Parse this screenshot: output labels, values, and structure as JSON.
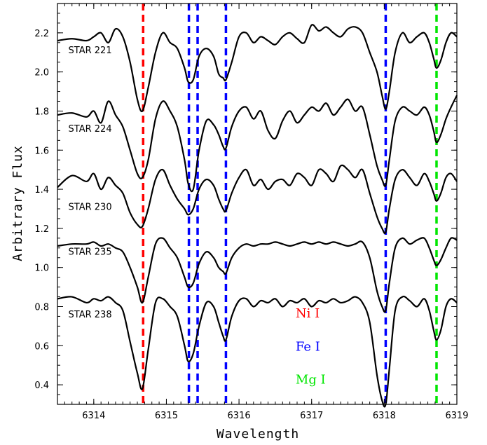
{
  "chart_data": {
    "type": "line",
    "title": "",
    "xlabel": "Wavelength",
    "ylabel": "Arbitrary Flux",
    "xlim": [
      6313.5,
      6319.0
    ],
    "ylim": [
      0.3,
      2.35
    ],
    "x_ticks": [
      6314,
      6315,
      6316,
      6317,
      6318,
      6319
    ],
    "y_ticks": [
      0.4,
      0.6,
      0.8,
      1.0,
      1.2,
      1.4,
      1.6,
      1.8,
      2.0,
      2.2
    ],
    "y_tick_labels": [
      "0.4",
      "0.6",
      "0.8",
      "1.0",
      "1.2",
      "1.4",
      "1.6",
      "1.8",
      "2.0",
      "2.2"
    ],
    "grid": false,
    "series": [
      {
        "name": "STAR 221",
        "label_at": [
          6313.65,
          2.095
        ],
        "x": [
          6313.5,
          6313.7,
          6313.9,
          6314.0,
          6314.1,
          6314.2,
          6314.3,
          6314.4,
          6314.5,
          6314.6,
          6314.67,
          6314.75,
          6314.85,
          6314.95,
          6315.05,
          6315.15,
          6315.25,
          6315.3,
          6315.37,
          6315.45,
          6315.55,
          6315.65,
          6315.72,
          6315.78,
          6315.82,
          6315.9,
          6316.0,
          6316.1,
          6316.2,
          6316.3,
          6316.4,
          6316.5,
          6316.6,
          6316.7,
          6316.8,
          6316.9,
          6317.0,
          6317.1,
          6317.2,
          6317.3,
          6317.4,
          6317.5,
          6317.6,
          6317.7,
          6317.8,
          6317.9,
          6317.97,
          6318.02,
          6318.07,
          6318.15,
          6318.25,
          6318.35,
          6318.45,
          6318.55,
          6318.62,
          6318.68,
          6318.72,
          6318.78,
          6318.85,
          6318.92,
          6319.0
        ],
        "y": [
          2.16,
          2.17,
          2.16,
          2.18,
          2.2,
          2.15,
          2.22,
          2.18,
          2.05,
          1.86,
          1.8,
          1.92,
          2.1,
          2.2,
          2.15,
          2.12,
          2.02,
          1.95,
          1.96,
          2.08,
          2.12,
          2.08,
          1.99,
          1.97,
          1.96,
          2.05,
          2.18,
          2.2,
          2.15,
          2.18,
          2.16,
          2.14,
          2.18,
          2.2,
          2.17,
          2.15,
          2.24,
          2.21,
          2.23,
          2.2,
          2.18,
          2.22,
          2.23,
          2.2,
          2.1,
          2.0,
          1.88,
          1.81,
          1.9,
          2.1,
          2.2,
          2.15,
          2.18,
          2.2,
          2.15,
          2.07,
          2.02,
          2.06,
          2.15,
          2.2,
          2.18
        ]
      },
      {
        "name": "STAR 224",
        "label_at": [
          6313.65,
          1.695
        ],
        "x": [
          6313.5,
          6313.7,
          6313.9,
          6314.0,
          6314.1,
          6314.2,
          6314.3,
          6314.4,
          6314.5,
          6314.6,
          6314.67,
          6314.75,
          6314.85,
          6314.95,
          6315.05,
          6315.15,
          6315.25,
          6315.3,
          6315.37,
          6315.45,
          6315.55,
          6315.65,
          6315.72,
          6315.78,
          6315.82,
          6315.9,
          6316.0,
          6316.1,
          6316.2,
          6316.3,
          6316.4,
          6316.5,
          6316.6,
          6316.7,
          6316.8,
          6316.9,
          6317.0,
          6317.1,
          6317.2,
          6317.3,
          6317.4,
          6317.5,
          6317.6,
          6317.7,
          6317.8,
          6317.9,
          6317.97,
          6318.02,
          6318.07,
          6318.15,
          6318.25,
          6318.35,
          6318.45,
          6318.55,
          6318.62,
          6318.68,
          6318.72,
          6318.78,
          6318.85,
          6318.92,
          6319.0
        ],
        "y": [
          1.78,
          1.79,
          1.77,
          1.8,
          1.74,
          1.85,
          1.78,
          1.72,
          1.6,
          1.48,
          1.46,
          1.55,
          1.76,
          1.85,
          1.8,
          1.72,
          1.55,
          1.43,
          1.4,
          1.6,
          1.75,
          1.73,
          1.68,
          1.62,
          1.61,
          1.72,
          1.8,
          1.82,
          1.76,
          1.8,
          1.7,
          1.66,
          1.75,
          1.8,
          1.74,
          1.78,
          1.82,
          1.8,
          1.84,
          1.78,
          1.82,
          1.86,
          1.8,
          1.82,
          1.68,
          1.52,
          1.45,
          1.42,
          1.55,
          1.75,
          1.82,
          1.8,
          1.78,
          1.82,
          1.78,
          1.7,
          1.64,
          1.68,
          1.76,
          1.82,
          1.88
        ]
      },
      {
        "name": "STAR 230",
        "label_at": [
          6313.65,
          1.295
        ],
        "x": [
          6313.5,
          6313.7,
          6313.9,
          6314.0,
          6314.1,
          6314.2,
          6314.3,
          6314.4,
          6314.5,
          6314.6,
          6314.67,
          6314.75,
          6314.85,
          6314.95,
          6315.05,
          6315.15,
          6315.25,
          6315.3,
          6315.37,
          6315.45,
          6315.55,
          6315.65,
          6315.72,
          6315.78,
          6315.82,
          6315.9,
          6316.0,
          6316.1,
          6316.2,
          6316.3,
          6316.4,
          6316.5,
          6316.6,
          6316.7,
          6316.8,
          6316.9,
          6317.0,
          6317.1,
          6317.2,
          6317.3,
          6317.4,
          6317.5,
          6317.6,
          6317.7,
          6317.8,
          6317.9,
          6317.97,
          6318.02,
          6318.07,
          6318.15,
          6318.25,
          6318.35,
          6318.45,
          6318.55,
          6318.62,
          6318.68,
          6318.72,
          6318.78,
          6318.85,
          6318.92,
          6319.0
        ],
        "y": [
          1.41,
          1.47,
          1.44,
          1.48,
          1.4,
          1.46,
          1.42,
          1.38,
          1.28,
          1.22,
          1.21,
          1.3,
          1.45,
          1.5,
          1.42,
          1.35,
          1.3,
          1.27,
          1.3,
          1.4,
          1.45,
          1.42,
          1.35,
          1.3,
          1.29,
          1.38,
          1.46,
          1.5,
          1.42,
          1.45,
          1.4,
          1.44,
          1.45,
          1.42,
          1.48,
          1.46,
          1.42,
          1.5,
          1.48,
          1.44,
          1.52,
          1.5,
          1.46,
          1.5,
          1.38,
          1.26,
          1.2,
          1.18,
          1.3,
          1.45,
          1.5,
          1.46,
          1.42,
          1.48,
          1.44,
          1.38,
          1.34,
          1.38,
          1.46,
          1.48,
          1.44
        ]
      },
      {
        "name": "STAR 235",
        "label_at": [
          6313.65,
          1.065
        ],
        "x": [
          6313.5,
          6313.7,
          6313.9,
          6314.0,
          6314.1,
          6314.2,
          6314.3,
          6314.4,
          6314.5,
          6314.6,
          6314.67,
          6314.75,
          6314.85,
          6314.95,
          6315.05,
          6315.15,
          6315.25,
          6315.3,
          6315.37,
          6315.45,
          6315.55,
          6315.65,
          6315.72,
          6315.78,
          6315.82,
          6315.9,
          6316.0,
          6316.1,
          6316.2,
          6316.3,
          6316.4,
          6316.5,
          6316.6,
          6316.7,
          6316.8,
          6316.9,
          6317.0,
          6317.1,
          6317.2,
          6317.3,
          6317.4,
          6317.5,
          6317.6,
          6317.7,
          6317.8,
          6317.9,
          6317.97,
          6318.02,
          6318.07,
          6318.15,
          6318.25,
          6318.35,
          6318.45,
          6318.55,
          6318.62,
          6318.68,
          6318.72,
          6318.78,
          6318.85,
          6318.92,
          6319.0
        ],
        "y": [
          1.11,
          1.12,
          1.12,
          1.13,
          1.11,
          1.12,
          1.1,
          1.08,
          1.0,
          0.9,
          0.82,
          0.95,
          1.12,
          1.15,
          1.1,
          1.05,
          0.95,
          0.9,
          0.92,
          1.02,
          1.08,
          1.05,
          1.0,
          0.98,
          0.97,
          1.05,
          1.1,
          1.12,
          1.11,
          1.12,
          1.12,
          1.13,
          1.12,
          1.11,
          1.12,
          1.13,
          1.12,
          1.13,
          1.12,
          1.13,
          1.12,
          1.11,
          1.12,
          1.13,
          1.05,
          0.88,
          0.8,
          0.78,
          0.92,
          1.1,
          1.15,
          1.12,
          1.14,
          1.15,
          1.1,
          1.04,
          1.01,
          1.04,
          1.1,
          1.15,
          1.14
        ]
      },
      {
        "name": "STAR 238",
        "label_at": [
          6313.65,
          0.745
        ],
        "x": [
          6313.5,
          6313.7,
          6313.9,
          6314.0,
          6314.1,
          6314.2,
          6314.3,
          6314.4,
          6314.5,
          6314.6,
          6314.67,
          6314.75,
          6314.85,
          6314.95,
          6315.05,
          6315.15,
          6315.25,
          6315.3,
          6315.37,
          6315.45,
          6315.55,
          6315.65,
          6315.72,
          6315.78,
          6315.82,
          6315.9,
          6316.0,
          6316.1,
          6316.2,
          6316.3,
          6316.4,
          6316.5,
          6316.6,
          6316.7,
          6316.8,
          6316.9,
          6317.0,
          6317.1,
          6317.2,
          6317.3,
          6317.4,
          6317.5,
          6317.6,
          6317.7,
          6317.8,
          6317.9,
          6317.97,
          6318.02,
          6318.07,
          6318.15,
          6318.25,
          6318.35,
          6318.45,
          6318.55,
          6318.62,
          6318.68,
          6318.72,
          6318.78,
          6318.85,
          6318.92,
          6319.0
        ],
        "y": [
          0.84,
          0.85,
          0.82,
          0.84,
          0.83,
          0.85,
          0.82,
          0.78,
          0.62,
          0.46,
          0.38,
          0.58,
          0.82,
          0.84,
          0.8,
          0.75,
          0.6,
          0.52,
          0.56,
          0.7,
          0.82,
          0.8,
          0.72,
          0.65,
          0.63,
          0.75,
          0.83,
          0.84,
          0.8,
          0.83,
          0.82,
          0.84,
          0.8,
          0.83,
          0.82,
          0.84,
          0.8,
          0.83,
          0.82,
          0.84,
          0.82,
          0.83,
          0.85,
          0.82,
          0.72,
          0.45,
          0.32,
          0.3,
          0.48,
          0.78,
          0.85,
          0.83,
          0.8,
          0.84,
          0.78,
          0.68,
          0.63,
          0.68,
          0.8,
          0.84,
          0.82
        ]
      }
    ],
    "reference_lines": [
      {
        "x": 6314.68,
        "color": "#ff0000"
      },
      {
        "x": 6315.31,
        "color": "#0000ff"
      },
      {
        "x": 6315.43,
        "color": "#0000ff"
      },
      {
        "x": 6315.82,
        "color": "#0000ff"
      },
      {
        "x": 6318.02,
        "color": "#0000ff"
      },
      {
        "x": 6318.72,
        "color": "#00e600"
      }
    ],
    "annotations": [
      {
        "text": "Ni I",
        "color": "#ff0000",
        "at": [
          6316.78,
          0.745
        ]
      },
      {
        "text": "Fe I",
        "color": "#0000ff",
        "at": [
          6316.78,
          0.575
        ]
      },
      {
        "text": "Mg I",
        "color": "#00e600",
        "at": [
          6316.78,
          0.405
        ]
      }
    ]
  }
}
